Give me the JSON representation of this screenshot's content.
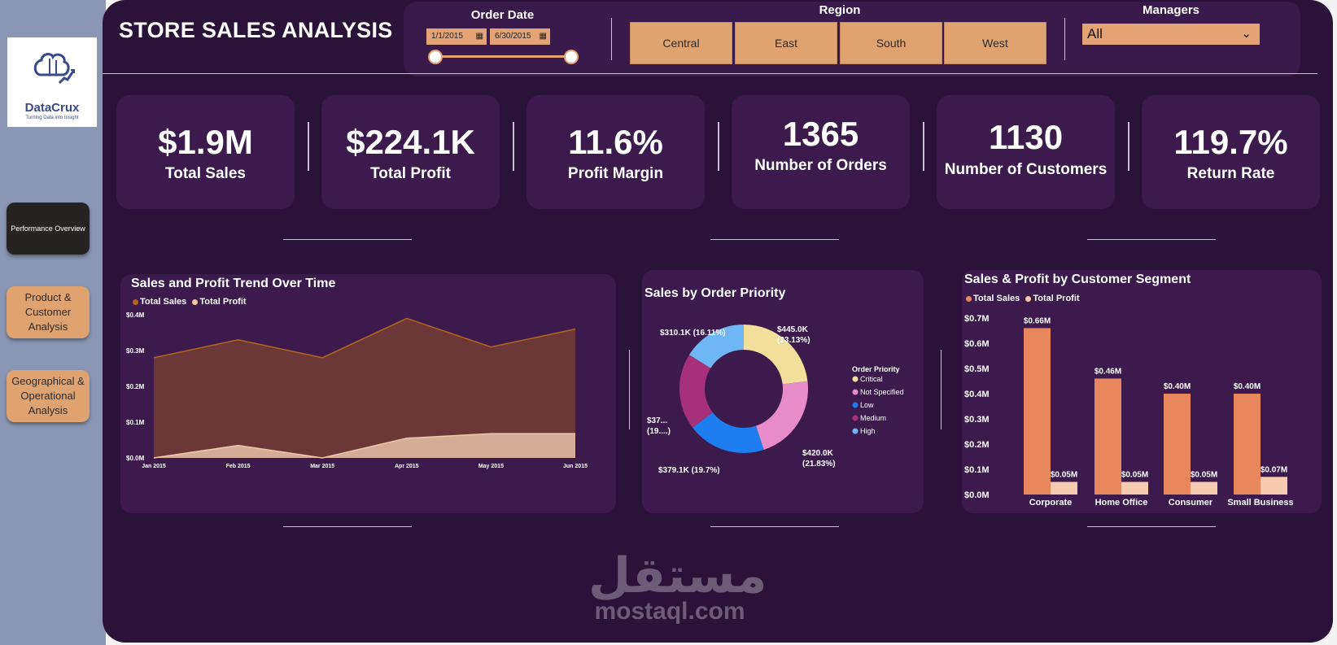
{
  "app": {
    "title": "STORE SALES ANALYSIS",
    "logo": {
      "name": "DataCrux",
      "tagline": "Turning Data into Insight"
    }
  },
  "nav": [
    {
      "label": "Performance Overview",
      "active": true
    },
    {
      "label": "Product & Customer Analysis",
      "active": false
    },
    {
      "label": "Geographical & Operational Analysis",
      "active": false
    }
  ],
  "filters": {
    "order_date": {
      "label": "Order Date",
      "start": "1/1/2015",
      "end": "6/30/2015"
    },
    "region": {
      "label": "Region",
      "options": [
        "Central",
        "East",
        "South",
        "West"
      ]
    },
    "managers": {
      "label": "Managers",
      "selected": "All"
    }
  },
  "kpis": [
    {
      "value": "$1.9M",
      "label": "Total Sales"
    },
    {
      "value": "$224.1K",
      "label": "Total Profit"
    },
    {
      "value": "11.6%",
      "label": "Profit Margin"
    },
    {
      "value": "1365",
      "label": "Number of Orders"
    },
    {
      "value": "1130",
      "label": "Number of Customers"
    },
    {
      "value": "119.7%",
      "label": "Return Rate"
    }
  ],
  "colors": {
    "sales": "#b5651d",
    "sales_fill": "#6e3a36",
    "profit": "#f2c7a8",
    "profit_fill": "#d9b39c",
    "bar_sales": "#e8875c",
    "bar_profit": "#f6cbb0",
    "critical": "#f2e09a",
    "not_specified": "#e88bc9",
    "low": "#1e7ef0",
    "medium": "#a6317a",
    "high": "#6fb6f5"
  },
  "chart_data": [
    {
      "type": "area",
      "title": "Sales and Profit Trend Over Time",
      "categories": [
        "Jan 2015",
        "Feb 2015",
        "Mar 2015",
        "Apr 2015",
        "May 2015",
        "Jun 2015"
      ],
      "y_ticks": [
        "$0.0M",
        "$0.1M",
        "$0.2M",
        "$0.3M",
        "$0.4M"
      ],
      "ylim": [
        0,
        0.4
      ],
      "series": [
        {
          "name": "Total Sales",
          "values": [
            0.28,
            0.33,
            0.28,
            0.39,
            0.31,
            0.36
          ]
        },
        {
          "name": "Total Profit",
          "values": [
            0.0,
            0.035,
            0.0,
            0.055,
            0.068,
            0.068
          ]
        }
      ]
    },
    {
      "type": "pie",
      "title": "Sales by Order Priority",
      "legend_title": "Order Priority",
      "slices": [
        {
          "name": "Critical",
          "value": 445.0,
          "pct": 23.13,
          "label": "$445.0K (23.13%)"
        },
        {
          "name": "Not Specified",
          "value": 420.0,
          "pct": 21.83,
          "label": "$420.0K (21.83%)"
        },
        {
          "name": "Low",
          "value": 379.1,
          "pct": 19.7,
          "label": "$379.1K (19.7%)"
        },
        {
          "name": "Medium",
          "value": 370.0,
          "pct": 19.23,
          "label": "$37... (19....)"
        },
        {
          "name": "High",
          "value": 310.1,
          "pct": 16.11,
          "label": "$310.1K (16.11%)"
        }
      ]
    },
    {
      "type": "bar",
      "title": "Sales & Profit by Customer Segment",
      "categories": [
        "Corporate",
        "Home Office",
        "Consumer",
        "Small Business"
      ],
      "y_ticks": [
        "$0.0M",
        "$0.1M",
        "$0.2M",
        "$0.3M",
        "$0.4M",
        "$0.5M",
        "$0.6M",
        "$0.7M"
      ],
      "ylim": [
        0,
        0.7
      ],
      "series": [
        {
          "name": "Total Sales",
          "values": [
            0.66,
            0.46,
            0.4,
            0.4
          ],
          "labels": [
            "$0.66M",
            "$0.46M",
            "$0.40M",
            "$0.40M"
          ]
        },
        {
          "name": "Total Profit",
          "values": [
            0.05,
            0.05,
            0.05,
            0.07
          ],
          "labels": [
            "$0.05M",
            "$0.05M",
            "$0.05M",
            "$0.07M"
          ]
        }
      ]
    }
  ],
  "watermark": {
    "arabic": "مستقل",
    "latin": "mostaql.com"
  }
}
